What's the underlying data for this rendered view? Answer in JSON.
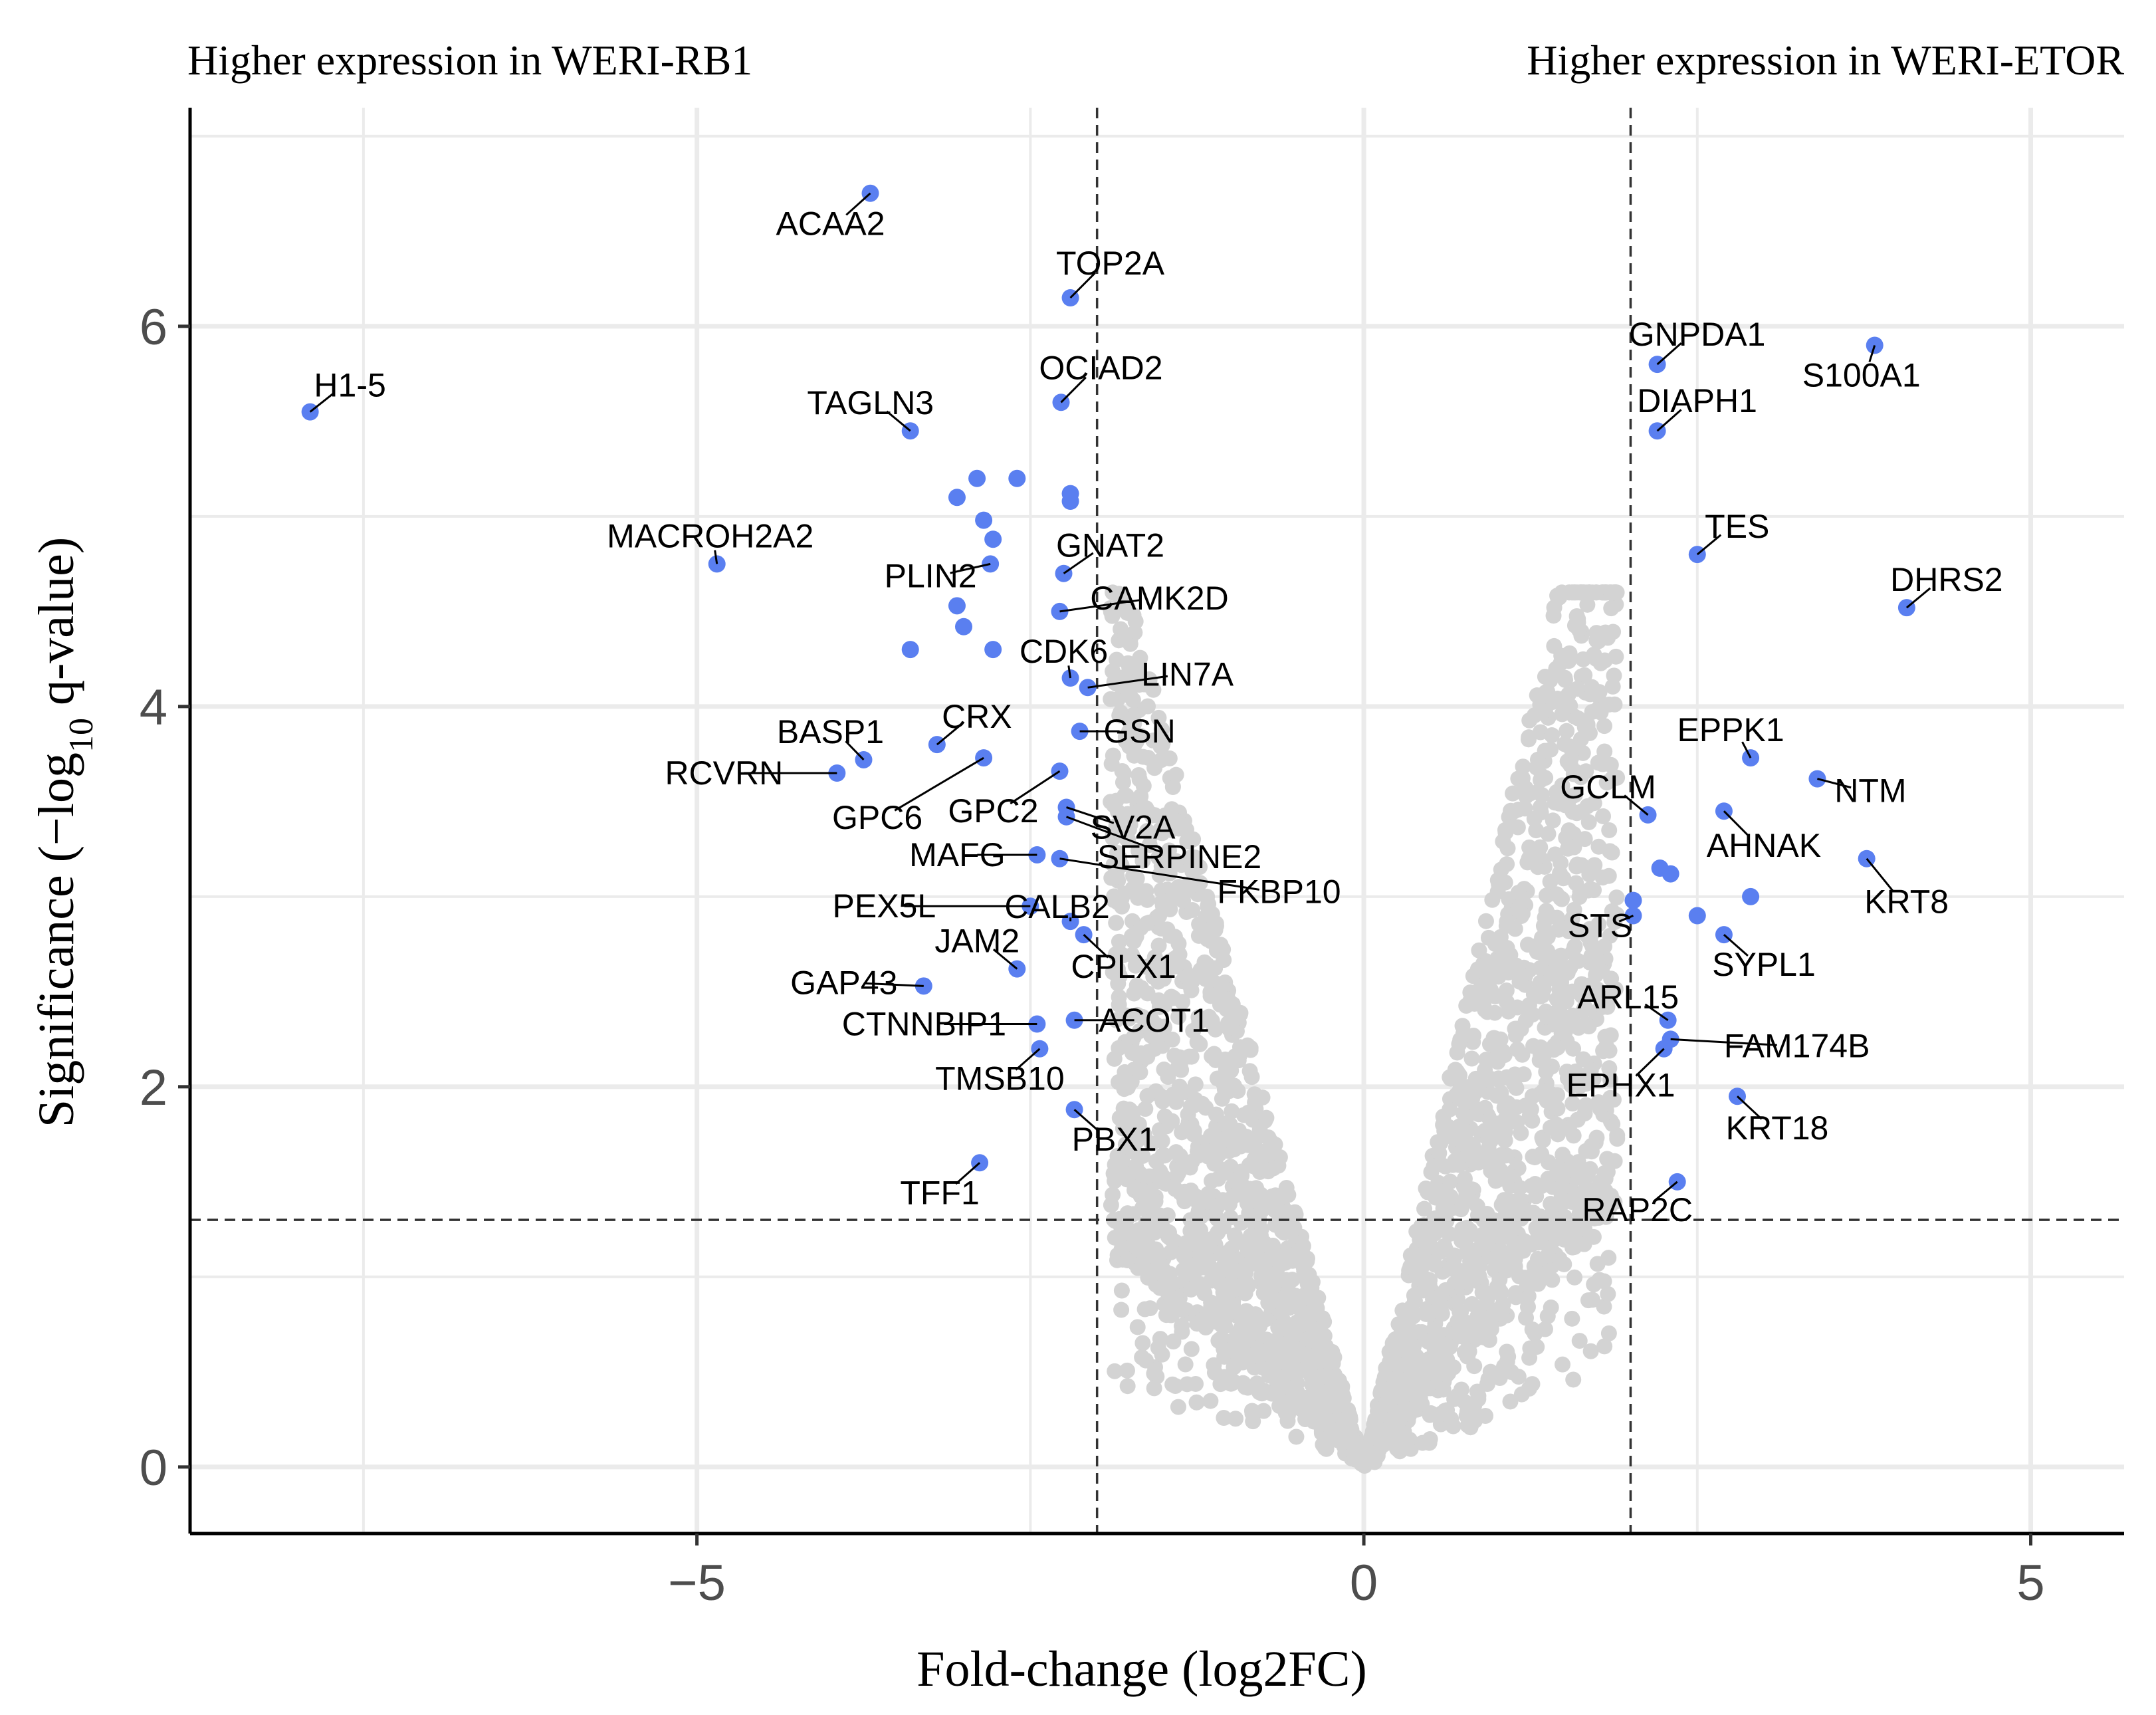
{
  "chart_data": {
    "type": "scatter",
    "title": "",
    "annotations": {
      "left": "Higher expression in WERI-RB1",
      "right": "Higher expression in WERI-ETOR"
    },
    "xlabel": "Fold-change (log2FC)",
    "ylabel_parts": [
      "Significance (−log",
      "10",
      " q-value)"
    ],
    "xlim": [
      -8.8,
      5.7
    ],
    "ylim": [
      -0.35,
      7.15
    ],
    "xticks": [
      -5,
      0,
      5
    ],
    "xtick_labels": [
      "−5",
      "0",
      "5"
    ],
    "yticks": [
      0,
      2,
      4,
      6
    ],
    "ytick_labels": [
      "0",
      "2",
      "4",
      "6"
    ],
    "thresholds": {
      "log2fc": [
        -2,
        2
      ],
      "q_value_line": 1.3
    },
    "colors": {
      "significant": "#5a7ff0",
      "nonsignificant": "#d3d3d3",
      "grid": "#ebebeb",
      "axis": "#000000"
    },
    "labeled_genes": [
      {
        "gene": "ACAA2",
        "x": -3.7,
        "y": 6.7
      },
      {
        "gene": "TOP2A",
        "x": -2.2,
        "y": 6.15
      },
      {
        "gene": "H1-5",
        "x": -7.9,
        "y": 5.55
      },
      {
        "gene": "OCIAD2",
        "x": -2.27,
        "y": 5.6
      },
      {
        "gene": "TAGLN3",
        "x": -3.4,
        "y": 5.45
      },
      {
        "gene": "MACROH2A2",
        "x": -4.85,
        "y": 4.75
      },
      {
        "gene": "GNAT2",
        "x": -2.25,
        "y": 4.7
      },
      {
        "gene": "PLIN2",
        "x": -2.8,
        "y": 4.75
      },
      {
        "gene": "CAMK2D",
        "x": -2.28,
        "y": 4.5
      },
      {
        "gene": "CDK6",
        "x": -2.2,
        "y": 4.15
      },
      {
        "gene": "LIN7A",
        "x": -2.07,
        "y": 4.1
      },
      {
        "gene": "CRX",
        "x": -3.2,
        "y": 3.8
      },
      {
        "gene": "GSN",
        "x": -2.13,
        "y": 3.87
      },
      {
        "gene": "BASP1",
        "x": -3.75,
        "y": 3.72
      },
      {
        "gene": "RCVRN",
        "x": -3.95,
        "y": 3.65
      },
      {
        "gene": "GPC6",
        "x": -2.85,
        "y": 3.73
      },
      {
        "gene": "GPC2",
        "x": -2.28,
        "y": 3.66
      },
      {
        "gene": "SV2A",
        "x": -2.23,
        "y": 3.47
      },
      {
        "gene": "SERPINE2",
        "x": -2.23,
        "y": 3.42
      },
      {
        "gene": "MAFG",
        "x": -2.45,
        "y": 3.22
      },
      {
        "gene": "FKBP10",
        "x": -2.28,
        "y": 3.2
      },
      {
        "gene": "CALB2",
        "x": -2.2,
        "y": 2.87
      },
      {
        "gene": "PEX5L",
        "x": -2.5,
        "y": 2.95
      },
      {
        "gene": "JAM2",
        "x": -2.6,
        "y": 2.62
      },
      {
        "gene": "CPLX1",
        "x": -2.1,
        "y": 2.8
      },
      {
        "gene": "GAP43",
        "x": -3.3,
        "y": 2.53
      },
      {
        "gene": "CTNNBIP1",
        "x": -2.45,
        "y": 2.33
      },
      {
        "gene": "ACOT1",
        "x": -2.17,
        "y": 2.35
      },
      {
        "gene": "TMSB10",
        "x": -2.43,
        "y": 2.2
      },
      {
        "gene": "PBX1",
        "x": -2.17,
        "y": 1.88
      },
      {
        "gene": "TFF1",
        "x": -2.88,
        "y": 1.6
      },
      {
        "gene": "GNPDA1",
        "x": 2.2,
        "y": 5.8
      },
      {
        "gene": "S100A1",
        "x": 3.83,
        "y": 5.9
      },
      {
        "gene": "DIAPH1",
        "x": 2.2,
        "y": 5.45
      },
      {
        "gene": "TES",
        "x": 2.5,
        "y": 4.8
      },
      {
        "gene": "DHRS2",
        "x": 4.07,
        "y": 4.52
      },
      {
        "gene": "EPPK1",
        "x": 2.9,
        "y": 3.73
      },
      {
        "gene": "NTM",
        "x": 3.4,
        "y": 3.62
      },
      {
        "gene": "GCLM",
        "x": 2.13,
        "y": 3.43
      },
      {
        "gene": "AHNAK",
        "x": 2.7,
        "y": 3.45
      },
      {
        "gene": "KRT8",
        "x": 3.77,
        "y": 3.2
      },
      {
        "gene": "STS",
        "x": 2.02,
        "y": 2.9
      },
      {
        "gene": "SYPL1",
        "x": 2.7,
        "y": 2.8
      },
      {
        "gene": "ARL15",
        "x": 2.28,
        "y": 2.35
      },
      {
        "gene": "FAM174B",
        "x": 2.3,
        "y": 2.25
      },
      {
        "gene": "EPHX1",
        "x": 2.25,
        "y": 2.2
      },
      {
        "gene": "KRT18",
        "x": 2.8,
        "y": 1.95
      },
      {
        "gene": "RAP2C",
        "x": 2.35,
        "y": 1.5
      }
    ],
    "unlabeled_significant": [
      [
        -2.9,
        5.2
      ],
      [
        -2.6,
        5.2
      ],
      [
        -3.05,
        5.1
      ],
      [
        -2.2,
        5.12
      ],
      [
        -2.2,
        5.08
      ],
      [
        -2.85,
        4.98
      ],
      [
        -2.78,
        4.88
      ],
      [
        -3.05,
        4.53
      ],
      [
        -3.0,
        4.42
      ],
      [
        -3.4,
        4.3
      ],
      [
        -2.78,
        4.3
      ],
      [
        2.22,
        3.15
      ],
      [
        2.3,
        3.12
      ],
      [
        2.02,
        2.98
      ],
      [
        2.5,
        2.9
      ],
      [
        2.9,
        3.0
      ]
    ],
    "nonsignificant_points_note": "dense grey V-shaped cloud of non-significant genes between log2FC -2 and 2"
  }
}
